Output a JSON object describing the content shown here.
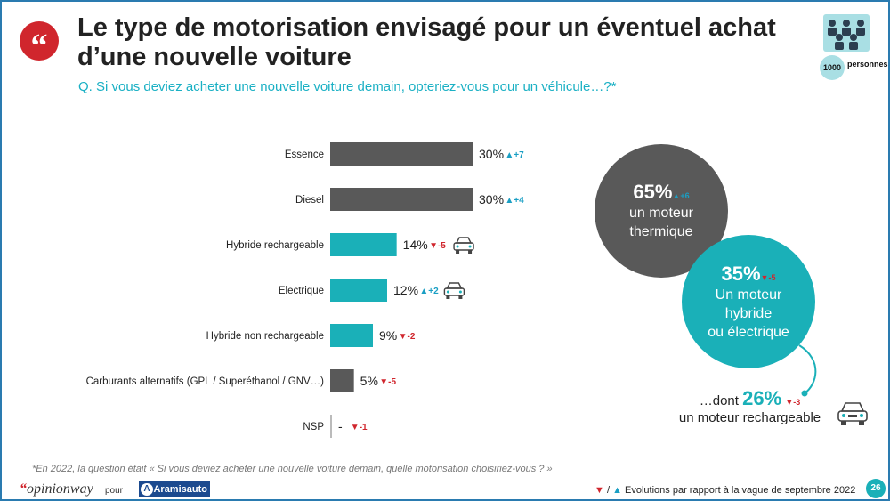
{
  "header": {
    "title": "Le type de motorisation envisagé pour un éventuel achat d’une nouvelle voiture",
    "question": "Q. Si vous deviez acheter une nouvelle voiture demain, opteriez-vous pour un véhicule…?*",
    "sample_count": "1000",
    "sample_label": "personnes"
  },
  "colors": {
    "dark": "#595959",
    "teal": "#1ab0b8",
    "up": "#1a9fc4",
    "down": "#d0262d"
  },
  "chart_data": {
    "type": "bar",
    "orientation": "horizontal",
    "categories": [
      "Essence",
      "Diesel",
      "Hybride rechargeable",
      "Electrique",
      "Hybride non rechargeable",
      "Carburants alternatifs (GPL / Superéthanol / GNV…)",
      "NSP"
    ],
    "values": [
      30,
      30,
      14,
      12,
      9,
      5,
      0
    ],
    "value_labels": [
      "30%",
      "30%",
      "14%",
      "12%",
      "9%",
      "5%",
      "-"
    ],
    "evolutions": [
      "+7",
      "+4",
      "-5",
      "+2",
      "-2",
      "-5",
      "-1"
    ],
    "directions": [
      "up",
      "up",
      "down",
      "up",
      "down",
      "down",
      "down"
    ],
    "groups": [
      "thermique",
      "thermique",
      "electrifie",
      "electrifie",
      "electrifie",
      "thermique",
      "nsp"
    ],
    "car_icons": [
      false,
      false,
      true,
      true,
      false,
      false,
      false
    ],
    "xlim": [
      0,
      30
    ]
  },
  "summary": {
    "thermique": {
      "pct": "65%",
      "evo": "+6",
      "label1": "un moteur",
      "label2": "thermique"
    },
    "electrifie": {
      "pct": "35%",
      "evo": "-5",
      "label1": "Un moteur",
      "label2": "hybride",
      "label3": "ou électrique"
    },
    "rechargeable": {
      "prefix": "…dont",
      "pct": "26%",
      "evo": "-3",
      "label": "un moteur rechargeable"
    }
  },
  "footer": {
    "note": "*En 2022, la question était « Si vous deviez acheter une nouvelle voiture demain, quelle motorisation choisiriez-vous ? »",
    "brand": "opinionway",
    "pour": "pour",
    "client": "Aramisauto",
    "legend": "Evolutions par rapport à la vague de septembre 2022",
    "legend_sep": "/",
    "page": "26"
  }
}
